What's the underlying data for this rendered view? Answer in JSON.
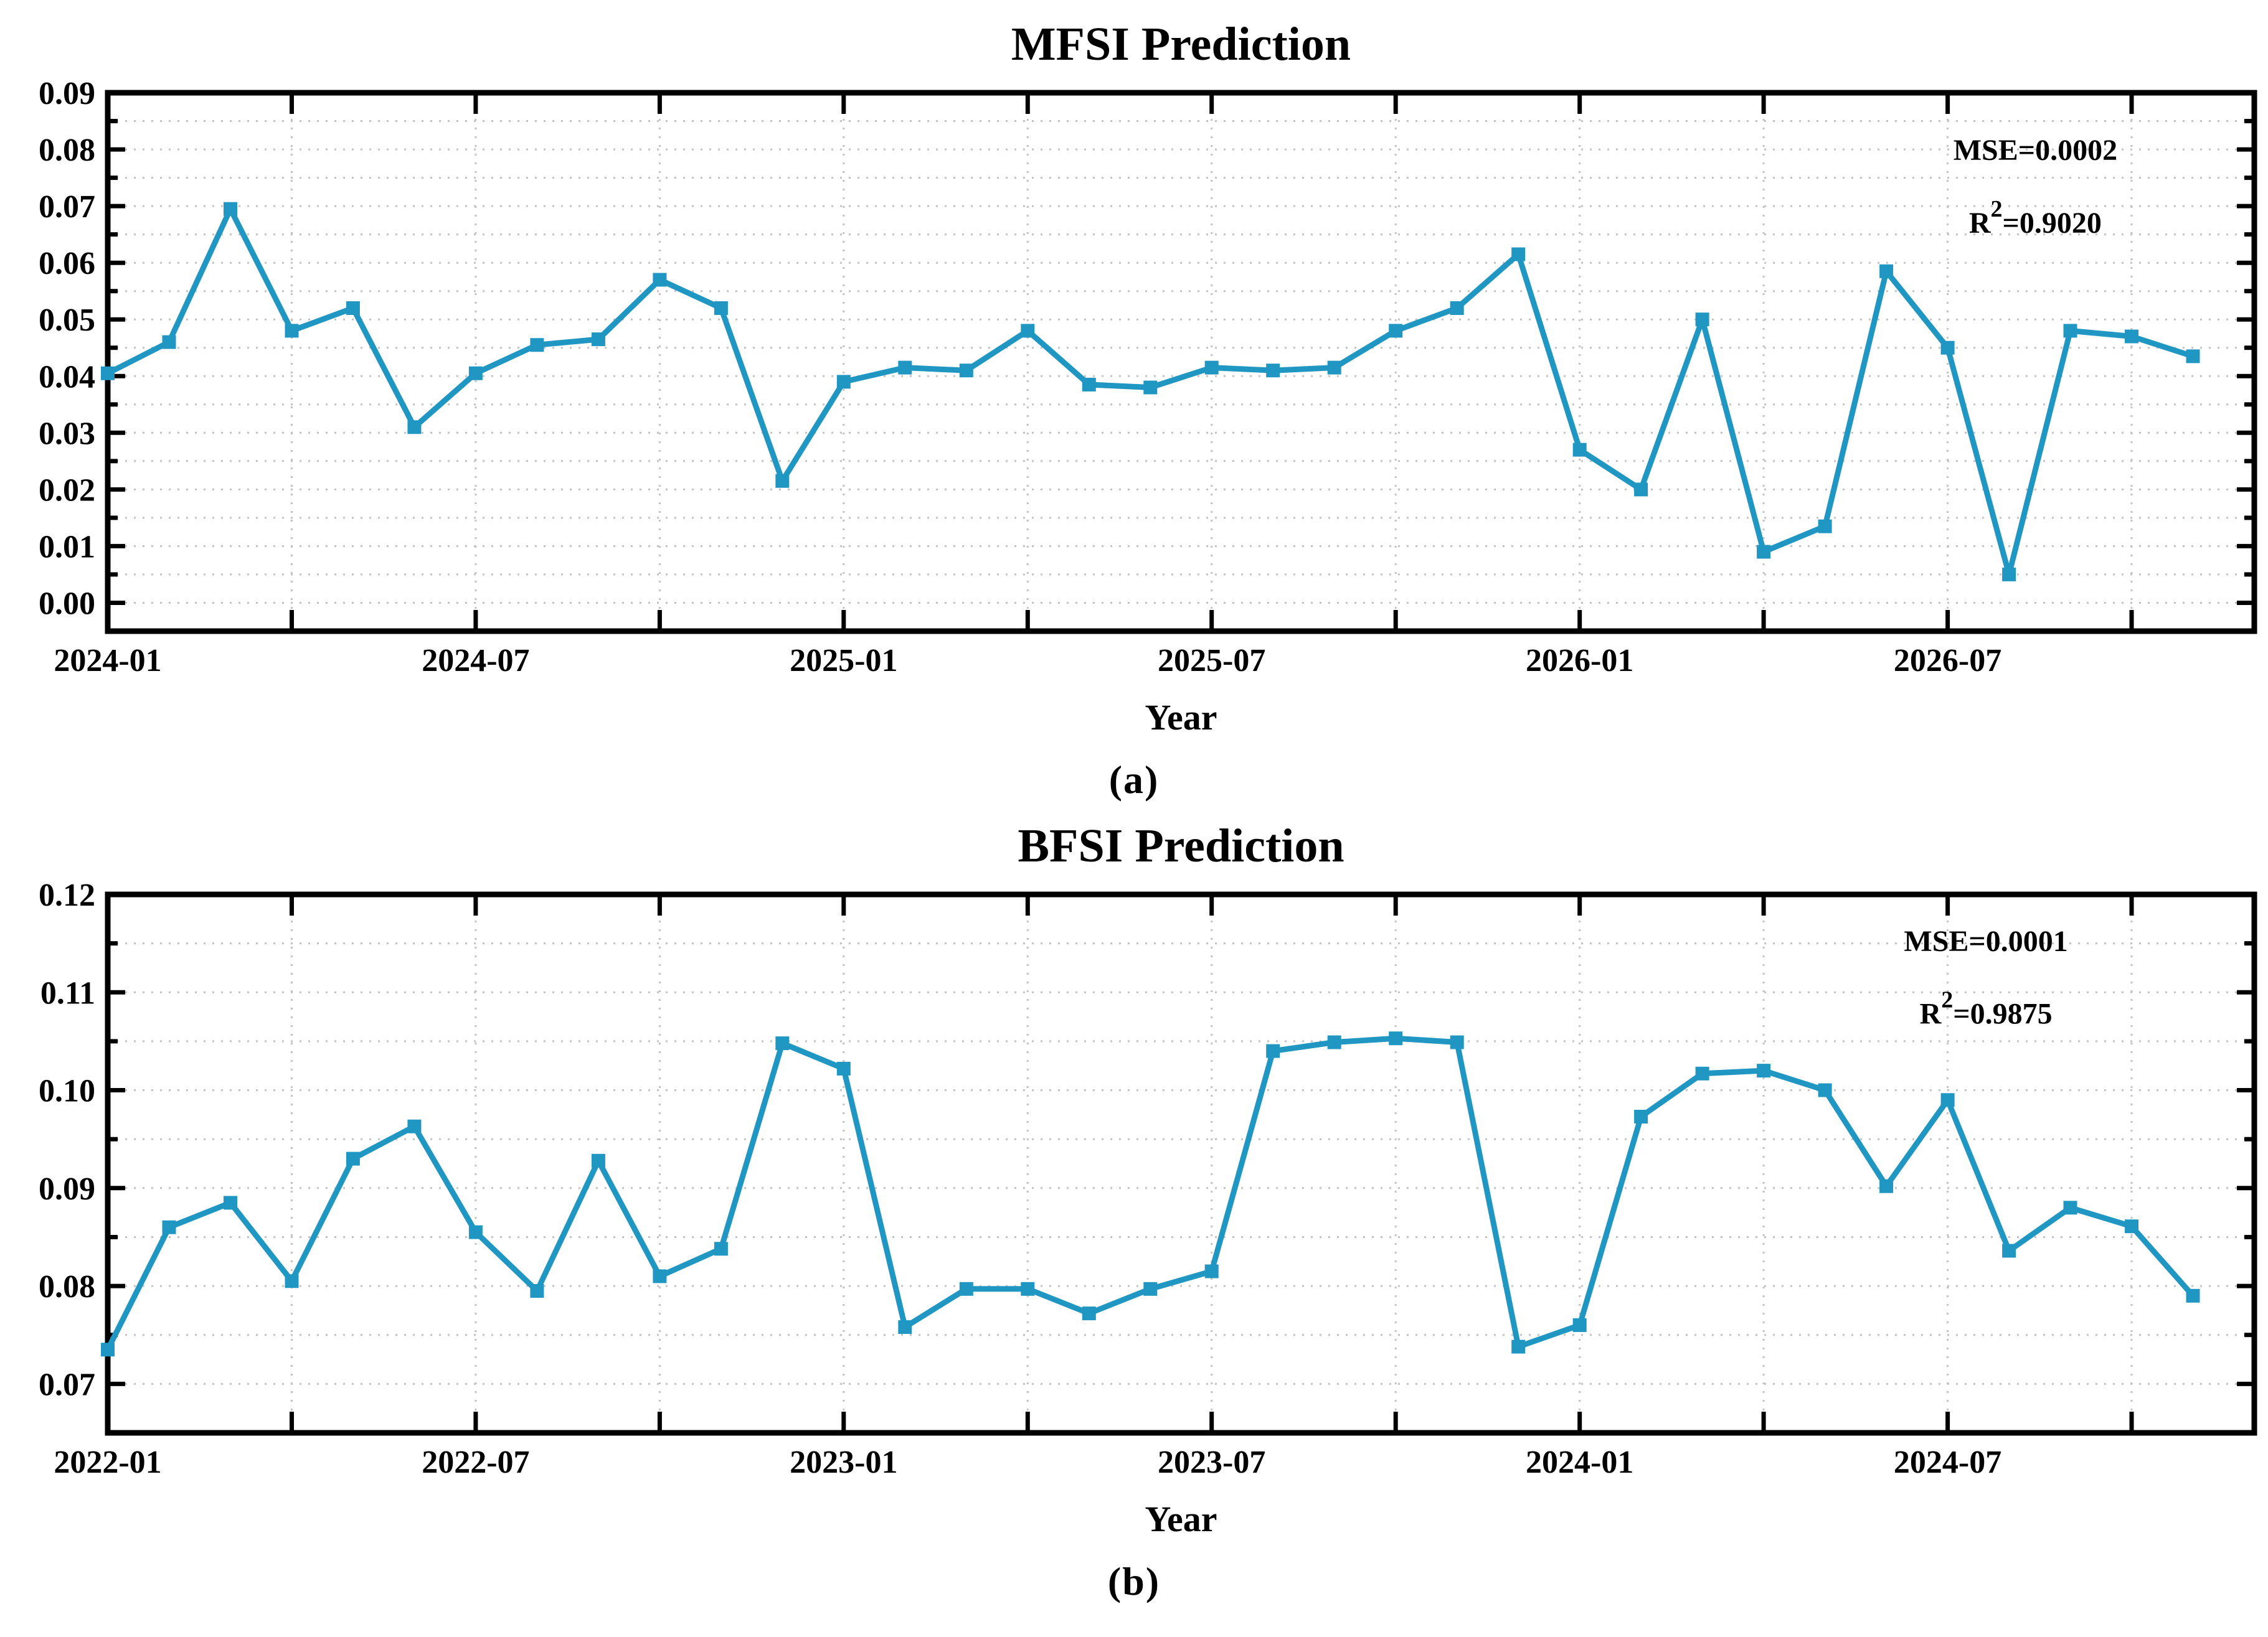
{
  "chart_data": [
    {
      "id": "mfsi",
      "type": "line",
      "title": "MFSI Prediction",
      "xlabel": "Year",
      "caption": "(a)",
      "annotation": {
        "mse": "MSE=0.0002",
        "r2_base": "R",
        "r2_sup": "2",
        "r2_rest": "=0.9020"
      },
      "line_color": "#2097c2",
      "grid_on": true,
      "ylim": [
        -0.005,
        0.09
      ],
      "grid_step": 0.005,
      "ytick_minor_step": 0.005,
      "ytick_major_step": 0.01,
      "y_tick_labels": [
        "0.00",
        "0.01",
        "0.02",
        "0.03",
        "0.04",
        "0.05",
        "0.06",
        "0.07",
        "0.08",
        "0.09"
      ],
      "x_start": "2024-01",
      "xlim_months": [
        0,
        35
      ],
      "x_tick_every_months": 3,
      "x_ticks": [
        {
          "label": "2024-01",
          "month": 0
        },
        {
          "label": "2024-07",
          "month": 6
        },
        {
          "label": "2025-01",
          "month": 12
        },
        {
          "label": "2025-07",
          "month": 18
        },
        {
          "label": "2026-01",
          "month": 24
        },
        {
          "label": "2026-07",
          "month": 30
        }
      ],
      "ann_fx": 0.898,
      "ann_fy": [
        0.125,
        0.26
      ],
      "points": [
        {
          "x": "2024-01",
          "y": 0.0405
        },
        {
          "x": "2024-02",
          "y": 0.046
        },
        {
          "x": "2024-03",
          "y": 0.0695
        },
        {
          "x": "2024-04",
          "y": 0.048
        },
        {
          "x": "2024-05",
          "y": 0.052
        },
        {
          "x": "2024-06",
          "y": 0.031
        },
        {
          "x": "2024-07",
          "y": 0.0405
        },
        {
          "x": "2024-08",
          "y": 0.0455
        },
        {
          "x": "2024-09",
          "y": 0.0465
        },
        {
          "x": "2024-10",
          "y": 0.057
        },
        {
          "x": "2024-11",
          "y": 0.052
        },
        {
          "x": "2024-12",
          "y": 0.0215
        },
        {
          "x": "2025-01",
          "y": 0.039
        },
        {
          "x": "2025-02",
          "y": 0.0415
        },
        {
          "x": "2025-03",
          "y": 0.041
        },
        {
          "x": "2025-04",
          "y": 0.048
        },
        {
          "x": "2025-05",
          "y": 0.0385
        },
        {
          "x": "2025-06",
          "y": 0.038
        },
        {
          "x": "2025-07",
          "y": 0.0415
        },
        {
          "x": "2025-08",
          "y": 0.041
        },
        {
          "x": "2025-09",
          "y": 0.0415
        },
        {
          "x": "2025-10",
          "y": 0.048
        },
        {
          "x": "2025-11",
          "y": 0.052
        },
        {
          "x": "2025-12",
          "y": 0.0615
        },
        {
          "x": "2026-01",
          "y": 0.027
        },
        {
          "x": "2026-02",
          "y": 0.02
        },
        {
          "x": "2026-03",
          "y": 0.05
        },
        {
          "x": "2026-04",
          "y": 0.009
        },
        {
          "x": "2026-05",
          "y": 0.0135
        },
        {
          "x": "2026-06",
          "y": 0.0585
        },
        {
          "x": "2026-07",
          "y": 0.045
        },
        {
          "x": "2026-08",
          "y": 0.005
        },
        {
          "x": "2026-09",
          "y": 0.048
        },
        {
          "x": "2026-10",
          "y": 0.047
        },
        {
          "x": "2026-11",
          "y": 0.0435
        }
      ]
    },
    {
      "id": "bfsi",
      "type": "line",
      "title": "BFSI Prediction",
      "xlabel": "Year",
      "caption": "(b)",
      "annotation": {
        "mse": "MSE=0.0001",
        "r2_base": "R",
        "r2_sup": "2",
        "r2_rest": "=0.9875"
      },
      "line_color": "#2097c2",
      "grid_on": true,
      "ylim": [
        0.065,
        0.12
      ],
      "grid_step": 0.005,
      "ytick_minor_step": 0.005,
      "ytick_major_step": 0.01,
      "y_tick_labels": [
        "0.07",
        "0.08",
        "0.09",
        "0.10",
        "0.11",
        "0.12"
      ],
      "x_start": "2022-01",
      "xlim_months": [
        0,
        35
      ],
      "x_tick_every_months": 3,
      "x_ticks": [
        {
          "label": "2022-01",
          "month": 0
        },
        {
          "label": "2022-07",
          "month": 6
        },
        {
          "label": "2023-01",
          "month": 12
        },
        {
          "label": "2023-07",
          "month": 18
        },
        {
          "label": "2024-01",
          "month": 24
        },
        {
          "label": "2024-07",
          "month": 30
        }
      ],
      "ann_fx": 0.875,
      "ann_fy": [
        0.105,
        0.24
      ],
      "points": [
        {
          "x": "2022-01",
          "y": 0.0735
        },
        {
          "x": "2022-02",
          "y": 0.086
        },
        {
          "x": "2022-03",
          "y": 0.0885
        },
        {
          "x": "2022-04",
          "y": 0.0805
        },
        {
          "x": "2022-05",
          "y": 0.093
        },
        {
          "x": "2022-06",
          "y": 0.0963
        },
        {
          "x": "2022-07",
          "y": 0.0855
        },
        {
          "x": "2022-08",
          "y": 0.0795
        },
        {
          "x": "2022-09",
          "y": 0.0928
        },
        {
          "x": "2022-10",
          "y": 0.081
        },
        {
          "x": "2022-11",
          "y": 0.0838
        },
        {
          "x": "2022-12",
          "y": 0.1048
        },
        {
          "x": "2023-01",
          "y": 0.1022
        },
        {
          "x": "2023-02",
          "y": 0.0758
        },
        {
          "x": "2023-03",
          "y": 0.0797
        },
        {
          "x": "2023-04",
          "y": 0.0797
        },
        {
          "x": "2023-05",
          "y": 0.0772
        },
        {
          "x": "2023-06",
          "y": 0.0797
        },
        {
          "x": "2023-07",
          "y": 0.0815
        },
        {
          "x": "2023-08",
          "y": 0.104
        },
        {
          "x": "2023-09",
          "y": 0.1049
        },
        {
          "x": "2023-10",
          "y": 0.1053
        },
        {
          "x": "2023-11",
          "y": 0.1049
        },
        {
          "x": "2023-12",
          "y": 0.0738
        },
        {
          "x": "2024-01",
          "y": 0.076
        },
        {
          "x": "2024-02",
          "y": 0.0973
        },
        {
          "x": "2024-03",
          "y": 0.1017
        },
        {
          "x": "2024-04",
          "y": 0.102
        },
        {
          "x": "2024-05",
          "y": 0.1
        },
        {
          "x": "2024-06",
          "y": 0.0902
        },
        {
          "x": "2024-07",
          "y": 0.099
        },
        {
          "x": "2024-08",
          "y": 0.0836
        },
        {
          "x": "2024-09",
          "y": 0.088
        },
        {
          "x": "2024-10",
          "y": 0.0861
        },
        {
          "x": "2024-11",
          "y": 0.079
        }
      ]
    }
  ]
}
